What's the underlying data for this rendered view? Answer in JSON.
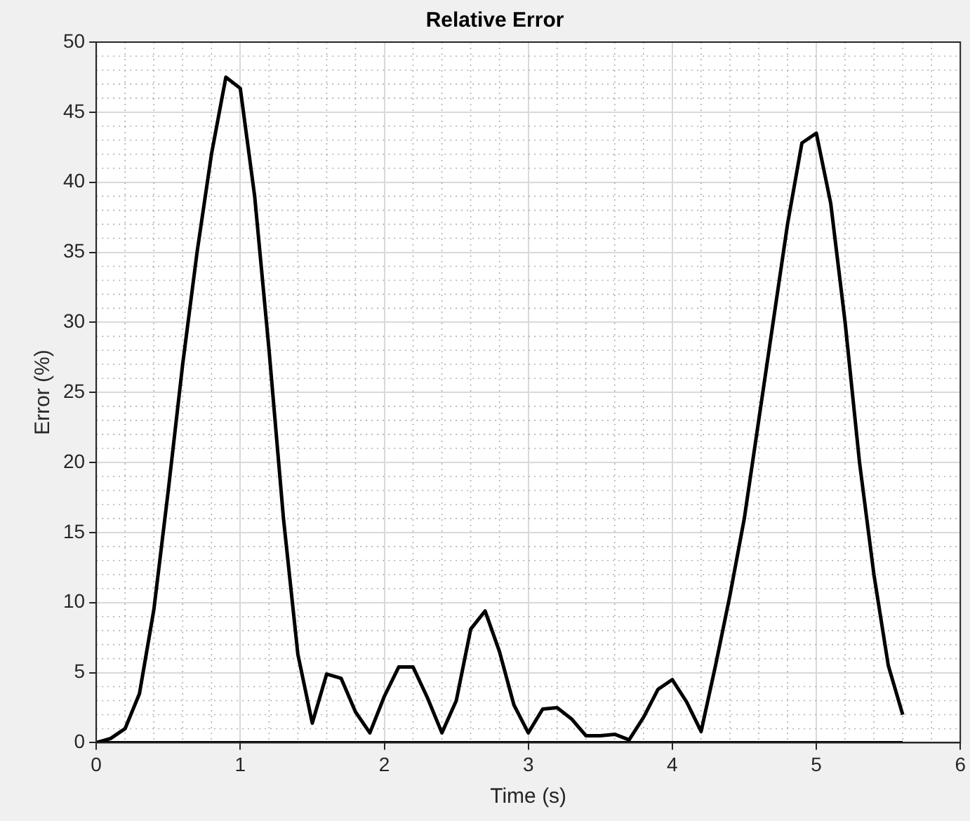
{
  "chart_data": {
    "type": "line",
    "title": "Relative Error",
    "xlabel": "Time (s)",
    "ylabel": "Error (%)",
    "x": [
      0,
      0.1,
      0.2,
      0.3,
      0.4,
      0.5,
      0.6,
      0.7,
      0.8,
      0.9,
      1.0,
      1.1,
      1.2,
      1.3,
      1.4,
      1.5,
      1.6,
      1.7,
      1.8,
      1.9,
      2.0,
      2.1,
      2.2,
      2.3,
      2.4,
      2.5,
      2.6,
      2.7,
      2.8,
      2.9,
      3.0,
      3.1,
      3.2,
      3.3,
      3.4,
      3.5,
      3.6,
      3.7,
      3.8,
      3.9,
      4.0,
      4.1,
      4.2,
      4.3,
      4.4,
      4.5,
      4.6,
      4.7,
      4.8,
      4.9,
      5.0,
      5.1,
      5.2,
      5.3,
      5.4,
      5.5,
      5.6
    ],
    "series": [
      {
        "color": "#000000",
        "values": [
          0,
          0.3,
          1.0,
          3.5,
          9.5,
          18,
          27,
          35,
          42,
          47.5,
          46.7,
          39,
          28,
          16,
          6.3,
          1.4,
          4.9,
          4.6,
          2.2,
          0.7,
          3.3,
          5.4,
          5.4,
          3.2,
          0.7,
          3.0,
          8.1,
          9.4,
          6.5,
          2.7,
          0.7,
          2.4,
          2.5,
          1.7,
          0.5,
          0.5,
          0.6,
          0.2,
          1.8,
          3.8,
          4.5,
          2.9,
          0.8,
          5.5,
          10.5,
          16,
          23,
          30,
          37,
          42.8,
          43.5,
          38.5,
          30,
          20,
          12,
          5.5,
          2.0
        ]
      },
      {
        "color": "#000000",
        "values": [
          0,
          0,
          0,
          0,
          0,
          0,
          0,
          0,
          0,
          0,
          0,
          0,
          0,
          0,
          0,
          0,
          0,
          0,
          0,
          0,
          0,
          0,
          0,
          0,
          0,
          0,
          0,
          0,
          0,
          0,
          0,
          0,
          0,
          0,
          0,
          0,
          0,
          0,
          0,
          0,
          0,
          0,
          0,
          0,
          0,
          0,
          0,
          0,
          0,
          0,
          0,
          0,
          0,
          0,
          0,
          0,
          0
        ]
      }
    ],
    "xlim": [
      0,
      6
    ],
    "xticks": [
      0,
      1,
      2,
      3,
      4,
      5,
      6
    ],
    "ylim": [
      0,
      50
    ],
    "yticks": [
      0,
      5,
      10,
      15,
      20,
      25,
      30,
      35,
      40,
      45,
      50
    ],
    "grid": true,
    "legend": false,
    "marker": "none",
    "line_style": "solid"
  }
}
